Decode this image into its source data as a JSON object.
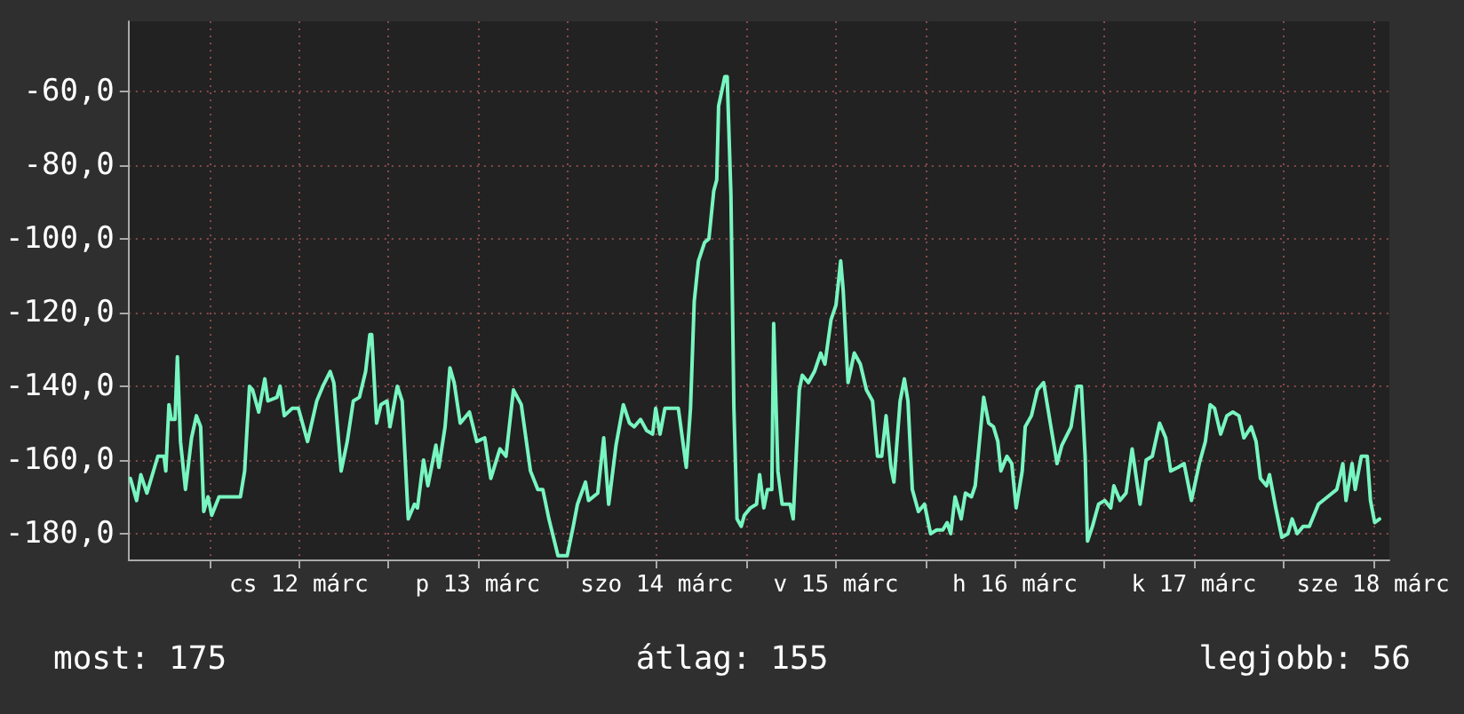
{
  "chart_data": {
    "type": "line",
    "x": [
      "--03-11T13:26",
      "--03-11T14:16",
      "--03-11T14:50",
      "--03-11T15:39",
      "--03-11T17:07",
      "--03-11T17:56",
      "--03-11T18:11",
      "--03-11T18:36",
      "--03-11T18:55",
      "--03-11T19:25",
      "--03-11T19:44",
      "--03-11T20:09",
      "--03-11T20:49",
      "--03-11T21:38",
      "--03-11T22:17",
      "--03-11T22:51",
      "--03-11T23:16",
      "--03-11T23:50",
      "--03-12T00:20",
      "--03-12T01:19",
      "--03-12T04:11",
      "--03-12T04:45",
      "--03-12T05:24",
      "--03-12T05:49",
      "--03-12T06:38",
      "--03-12T07:27",
      "--03-12T07:52",
      "--03-12T09:05",
      "--03-12T09:30",
      "--03-12T10:04",
      "--03-12T11:08",
      "--03-12T11:57",
      "--03-12T13:11",
      "--03-12T14:25",
      "--03-12T15:14",
      "--03-12T16:13",
      "--03-12T16:42",
      "--03-12T17:41",
      "--03-12T18:30",
      "--03-12T19:19",
      "--03-12T20:08",
      "--03-12T20:58",
      "--03-12T21:32",
      "--03-12T21:47",
      "--03-12T22:26",
      "--03-12T23:01",
      "--03-12T23:50",
      "--03-13T00:14",
      "--03-13T01:13",
      "--03-13T01:52",
      "--03-13T02:41",
      "--03-13T03:31",
      "--03-13T03:55",
      "--03-13T04:44",
      "--03-13T05:19",
      "--03-13T06:23",
      "--03-13T06:47",
      "--03-13T07:37",
      "--03-13T08:16",
      "--03-13T08:50",
      "--03-13T09:39",
      "--03-13T10:53",
      "--03-13T11:52",
      "--03-13T12:56",
      "--03-13T13:45",
      "--03-13T14:58",
      "--03-13T15:47",
      "--03-13T16:47",
      "--03-13T17:50",
      "--03-13T19:04",
      "--03-13T20:03",
      "--03-13T20:43",
      "--03-13T21:32",
      "--03-13T22:45",
      "--03-13T23:59",
      "--03-14T00:48",
      "--03-14T01:22",
      "--03-14T02:26",
      "--03-14T02:51",
      "--03-14T04:05",
      "--03-14T04:53",
      "--03-14T05:33",
      "--03-14T06:32",
      "--03-14T07:31",
      "--03-14T08:20",
      "--03-14T08:59",
      "--03-14T09:49",
      "--03-14T10:38",
      "--03-14T11:26",
      "--03-14T11:51",
      "--03-14T12:26",
      "--03-14T13:05",
      "--03-14T14:19",
      "--03-14T14:53",
      "--03-14T15:57",
      "--03-14T16:31",
      "--03-14T17:01",
      "--03-14T17:35",
      "--03-14T18:24",
      "--03-14T18:59",
      "--03-14T19:38",
      "--03-14T20:02",
      "--03-14T20:17",
      "--03-14T21:07",
      "--03-14T21:26",
      "--03-14T21:56",
      "--03-14T22:20",
      "--03-14T22:45",
      "--03-14T23:19",
      "--03-14T23:44",
      "--03-15T00:33",
      "--03-15T01:22",
      "--03-15T01:47",
      "--03-15T02:21",
      "--03-15T02:50",
      "--03-15T03:25",
      "--03-15T03:40",
      "--03-15T04:14",
      "--03-15T04:48",
      "--03-15T05:52",
      "--03-15T06:17",
      "--03-15T07:06",
      "--03-15T07:30",
      "--03-15T08:19",
      "--03-15T09:08",
      "--03-15T09:58",
      "--03-15T10:32",
      "--03-15T11:21",
      "--03-15T12:01",
      "--03-15T12:39",
      "--03-15T12:59",
      "--03-15T13:38",
      "--03-15T14:28",
      "--03-15T15:17",
      "--03-15T16:06",
      "--03-15T16:55",
      "--03-15T17:35",
      "--03-15T18:09",
      "--03-15T18:44",
      "--03-15T19:23",
      "--03-15T19:47",
      "--03-15T20:37",
      "--03-15T21:11",
      "--03-15T21:40",
      "--03-15T22:15",
      "--03-15T23:04",
      "--03-15T23:53",
      "--03-16T00:42",
      "--03-16T01:31",
      "--03-16T02:20",
      "--03-16T02:55",
      "--03-16T03:24",
      "--03-16T03:59",
      "--03-16T04:48",
      "--03-16T05:22",
      "--03-16T06:11",
      "--03-16T06:41",
      "--03-16T07:15",
      "--03-16T07:49",
      "--03-16T08:29",
      "--03-16T09:08",
      "--03-16T09:43",
      "--03-16T10:07",
      "--03-16T10:56",
      "--03-16T11:35",
      "--03-16T12:10",
      "--03-16T12:59",
      "--03-16T13:23",
      "--03-16T14:13",
      "--03-16T15:02",
      "--03-16T15:51",
      "--03-16T16:40",
      "--03-16T17:39",
      "--03-16T18:18",
      "--03-16T19:32",
      "--03-16T20:21",
      "--03-16T20:55",
      "--03-16T21:25",
      "--03-16T21:44",
      "--03-16T22:24",
      "--03-16T23:13",
      "--03-17T00:02",
      "--03-17T00:51",
      "--03-17T01:16",
      "--03-17T02:05",
      "--03-17T02:54",
      "--03-17T03:43",
      "--03-17T04:47",
      "--03-17T05:36",
      "--03-17T06:25",
      "--03-17T07:24",
      "--03-17T08:13",
      "--03-17T08:53",
      "--03-17T09:52",
      "--03-17T10:41",
      "--03-17T11:40",
      "--03-17T12:43",
      "--03-17T13:32",
      "--03-17T14:11",
      "--03-17T14:46",
      "--03-17T15:35",
      "--03-17T16:25",
      "--03-17T17:13",
      "--03-17T18:02",
      "--03-17T18:42",
      "--03-17T19:41",
      "--03-17T20:20",
      "--03-17T20:55",
      "--03-17T21:44",
      "--03-17T22:08",
      "--03-17T22:58",
      "--03-17T23:47",
      "--03-18T00:36",
      "--03-18T01:10",
      "--03-18T01:50",
      "--03-18T02:39",
      "--03-18T03:28",
      "--03-18T04:41",
      "--03-18T05:55",
      "--03-18T07:09",
      "--03-18T07:58",
      "--03-18T08:23",
      "--03-18T09:12",
      "--03-18T09:37",
      "--03-18T10:26",
      "--03-18T11:14",
      "--03-18T11:40",
      "--03-18T12:14",
      "--03-18T12:53"
    ],
    "series": [
      {
        "color": "#78f5c0",
        "values": [
          -165,
          -171,
          -164,
          -169,
          -159,
          -159,
          -163,
          -145,
          -149,
          -149,
          -132,
          -155,
          -168,
          -154,
          -148,
          -151,
          -174,
          -170,
          -175,
          -170,
          -170,
          -163,
          -140,
          -141,
          -147,
          -138,
          -144,
          -143,
          -140,
          -148,
          -146,
          -146,
          -155,
          -144,
          -140,
          -136,
          -139,
          -163,
          -155,
          -144,
          -143,
          -136,
          -126,
          -126,
          -150,
          -145,
          -144,
          -151,
          -140,
          -144,
          -176,
          -172,
          -173,
          -160,
          -167,
          -156,
          -162,
          -151,
          -135,
          -139,
          -150,
          -147,
          -155,
          -154,
          -165,
          -157,
          -159,
          -141,
          -145,
          -163,
          -168,
          -168,
          -176,
          -186,
          -186,
          -178,
          -172,
          -166,
          -171,
          -169,
          -154,
          -172,
          -156,
          -145,
          -150,
          -151,
          -149,
          -152,
          -153,
          -146,
          -153,
          -146,
          -146,
          -146,
          -162,
          -146,
          -117,
          -106,
          -101,
          -100,
          -87,
          -84,
          -64,
          -56,
          -56,
          -88,
          -146,
          -176,
          -178,
          -175,
          -173,
          -172,
          -164,
          -173,
          -168,
          -168,
          -123,
          -163,
          -172,
          -172,
          -176,
          -141,
          -137,
          -139,
          -136,
          -131,
          -134,
          -122,
          -118,
          -106,
          -114,
          -139,
          -131,
          -134,
          -141,
          -144,
          -159,
          -159,
          -148,
          -162,
          -166,
          -144,
          -138,
          -144,
          -168,
          -174,
          -172,
          -180,
          -179,
          -179,
          -177,
          -180,
          -170,
          -176,
          -169,
          -170,
          -167,
          -155,
          -143,
          -150,
          -151,
          -155,
          -163,
          -159,
          -161,
          -173,
          -163,
          -151,
          -148,
          -141,
          -139,
          -149,
          -161,
          -156,
          -151,
          -140,
          -140,
          -159,
          -182,
          -178,
          -172,
          -171,
          -173,
          -167,
          -171,
          -169,
          -157,
          -172,
          -160,
          -159,
          -150,
          -154,
          -163,
          -162,
          -161,
          -171,
          -161,
          -155,
          -145,
          -146,
          -153,
          -148,
          -147,
          -148,
          -154,
          -151,
          -155,
          -165,
          -167,
          -164,
          -173,
          -181,
          -180,
          -176,
          -180,
          -178,
          -178,
          -172,
          -170,
          -168,
          -161,
          -171,
          -161,
          -168,
          -159,
          -159,
          -171,
          -177,
          -176
        ]
      }
    ],
    "xlim": [
      "--03-11T13:12",
      "--03-18T14:12"
    ],
    "xticks": [
      {
        "value": "--03-12T00:00",
        "label": null
      },
      {
        "value": "--03-12T12:00",
        "label": "cs 12 márc"
      },
      {
        "value": "--03-13T00:00",
        "label": null
      },
      {
        "value": "--03-13T12:00",
        "label": "p 13 márc"
      },
      {
        "value": "--03-14T00:00",
        "label": null
      },
      {
        "value": "--03-14T12:00",
        "label": "szo 14 márc"
      },
      {
        "value": "--03-15T00:00",
        "label": null
      },
      {
        "value": "--03-15T12:00",
        "label": "v 15 márc"
      },
      {
        "value": "--03-16T00:00",
        "label": null
      },
      {
        "value": "--03-16T12:00",
        "label": "h 16 márc"
      },
      {
        "value": "--03-17T00:00",
        "label": null
      },
      {
        "value": "--03-17T12:00",
        "label": "k 17 márc"
      },
      {
        "value": "--03-18T00:00",
        "label": null
      },
      {
        "value": "--03-18T12:00",
        "label": "sze 18 márc"
      }
    ],
    "ylim": [
      -187,
      -41
    ],
    "yticks": [
      {
        "value": -180,
        "label": "-180,0"
      },
      {
        "value": -160,
        "label": "-160,0"
      },
      {
        "value": -140,
        "label": "-140,0"
      },
      {
        "value": -120,
        "label": "-120,0"
      },
      {
        "value": -100,
        "label": "-100,0"
      },
      {
        "value": -80,
        "label": "-80,0"
      },
      {
        "value": -60,
        "label": "-60,0"
      }
    ],
    "grid": true,
    "annotations": [
      "most: 175",
      "átlag: 155",
      "legjobb: 56"
    ]
  }
}
